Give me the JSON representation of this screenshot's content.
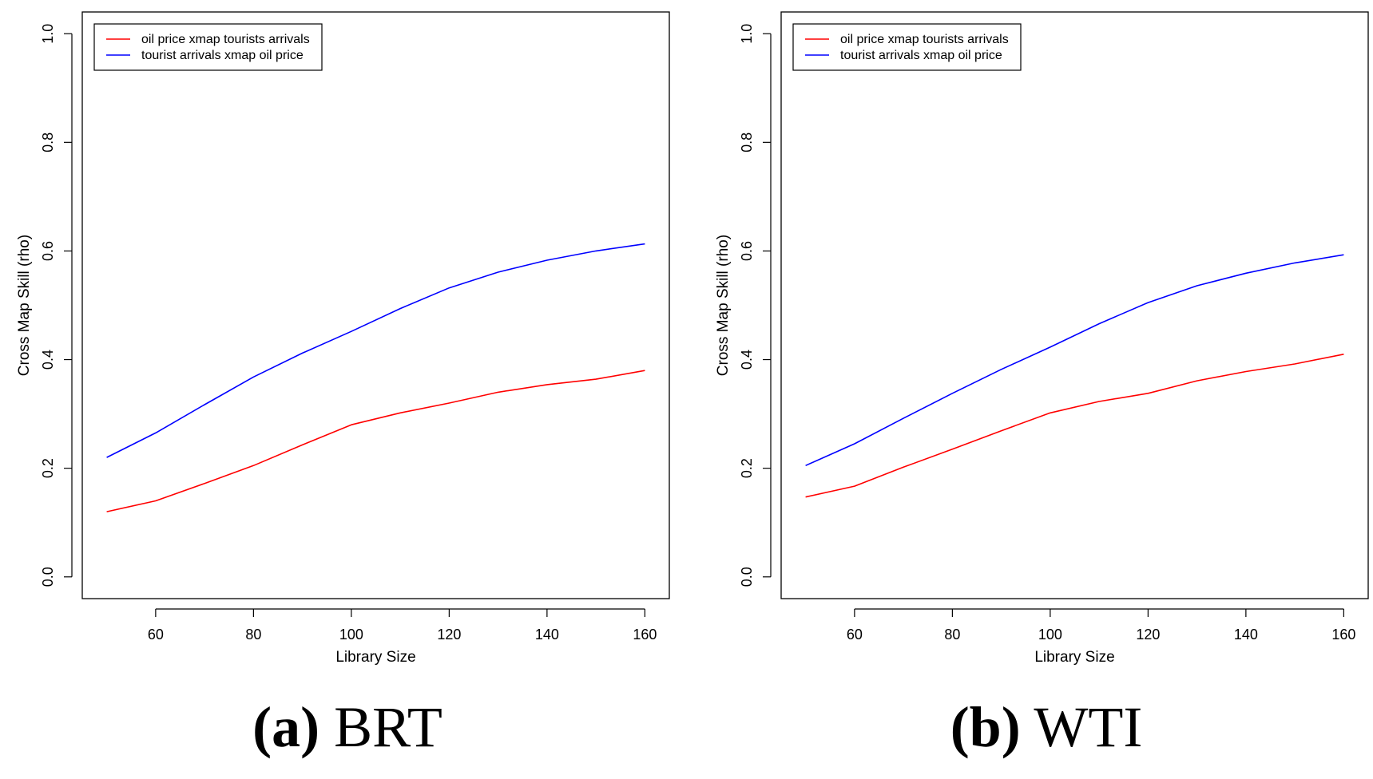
{
  "chart_data": [
    {
      "type": "line",
      "title": "",
      "xlabel": "Library Size",
      "ylabel": "Cross Map Skill (rho)",
      "xlim": [
        45,
        165
      ],
      "ylim": [
        -0.04,
        1.04
      ],
      "xticks": [
        60,
        80,
        100,
        120,
        140,
        160
      ],
      "yticks": [
        0.0,
        0.2,
        0.4,
        0.6,
        0.8,
        1.0
      ],
      "ytick_labels": [
        "0.0",
        "0.2",
        "0.4",
        "0.6",
        "0.8",
        "1.0"
      ],
      "x": [
        50,
        60,
        70,
        80,
        90,
        100,
        110,
        120,
        130,
        140,
        150,
        160
      ],
      "legend_position": "top-left",
      "series": [
        {
          "name": "oil price xmap tourists arrivals",
          "color": "#ff0000",
          "values": [
            0.12,
            0.14,
            0.172,
            0.205,
            0.243,
            0.28,
            0.302,
            0.32,
            0.34,
            0.354,
            0.364,
            0.38
          ]
        },
        {
          "name": "tourist arrivals xmap oil price",
          "color": "#0000ff",
          "values": [
            0.22,
            0.265,
            0.317,
            0.368,
            0.412,
            0.452,
            0.494,
            0.532,
            0.561,
            0.583,
            0.6,
            0.613
          ]
        }
      ],
      "caption_tag": "(a)",
      "caption_text": "BRT"
    },
    {
      "type": "line",
      "title": "",
      "xlabel": "Library Size",
      "ylabel": "Cross Map Skill (rho)",
      "xlim": [
        45,
        165
      ],
      "ylim": [
        -0.04,
        1.04
      ],
      "xticks": [
        60,
        80,
        100,
        120,
        140,
        160
      ],
      "yticks": [
        0.0,
        0.2,
        0.4,
        0.6,
        0.8,
        1.0
      ],
      "ytick_labels": [
        "0.0",
        "0.2",
        "0.4",
        "0.6",
        "0.8",
        "1.0"
      ],
      "x": [
        50,
        60,
        70,
        80,
        90,
        100,
        110,
        120,
        130,
        140,
        150,
        160
      ],
      "legend_position": "top-left",
      "series": [
        {
          "name": "oil price xmap tourists arrivals",
          "color": "#ff0000",
          "values": [
            0.147,
            0.167,
            0.202,
            0.235,
            0.269,
            0.302,
            0.323,
            0.338,
            0.361,
            0.378,
            0.392,
            0.41
          ]
        },
        {
          "name": "tourist arrivals xmap oil price",
          "color": "#0000ff",
          "values": [
            0.205,
            0.245,
            0.292,
            0.338,
            0.382,
            0.423,
            0.466,
            0.505,
            0.536,
            0.559,
            0.578,
            0.593
          ]
        }
      ],
      "caption_tag": "(b)",
      "caption_text": "WTI"
    }
  ]
}
